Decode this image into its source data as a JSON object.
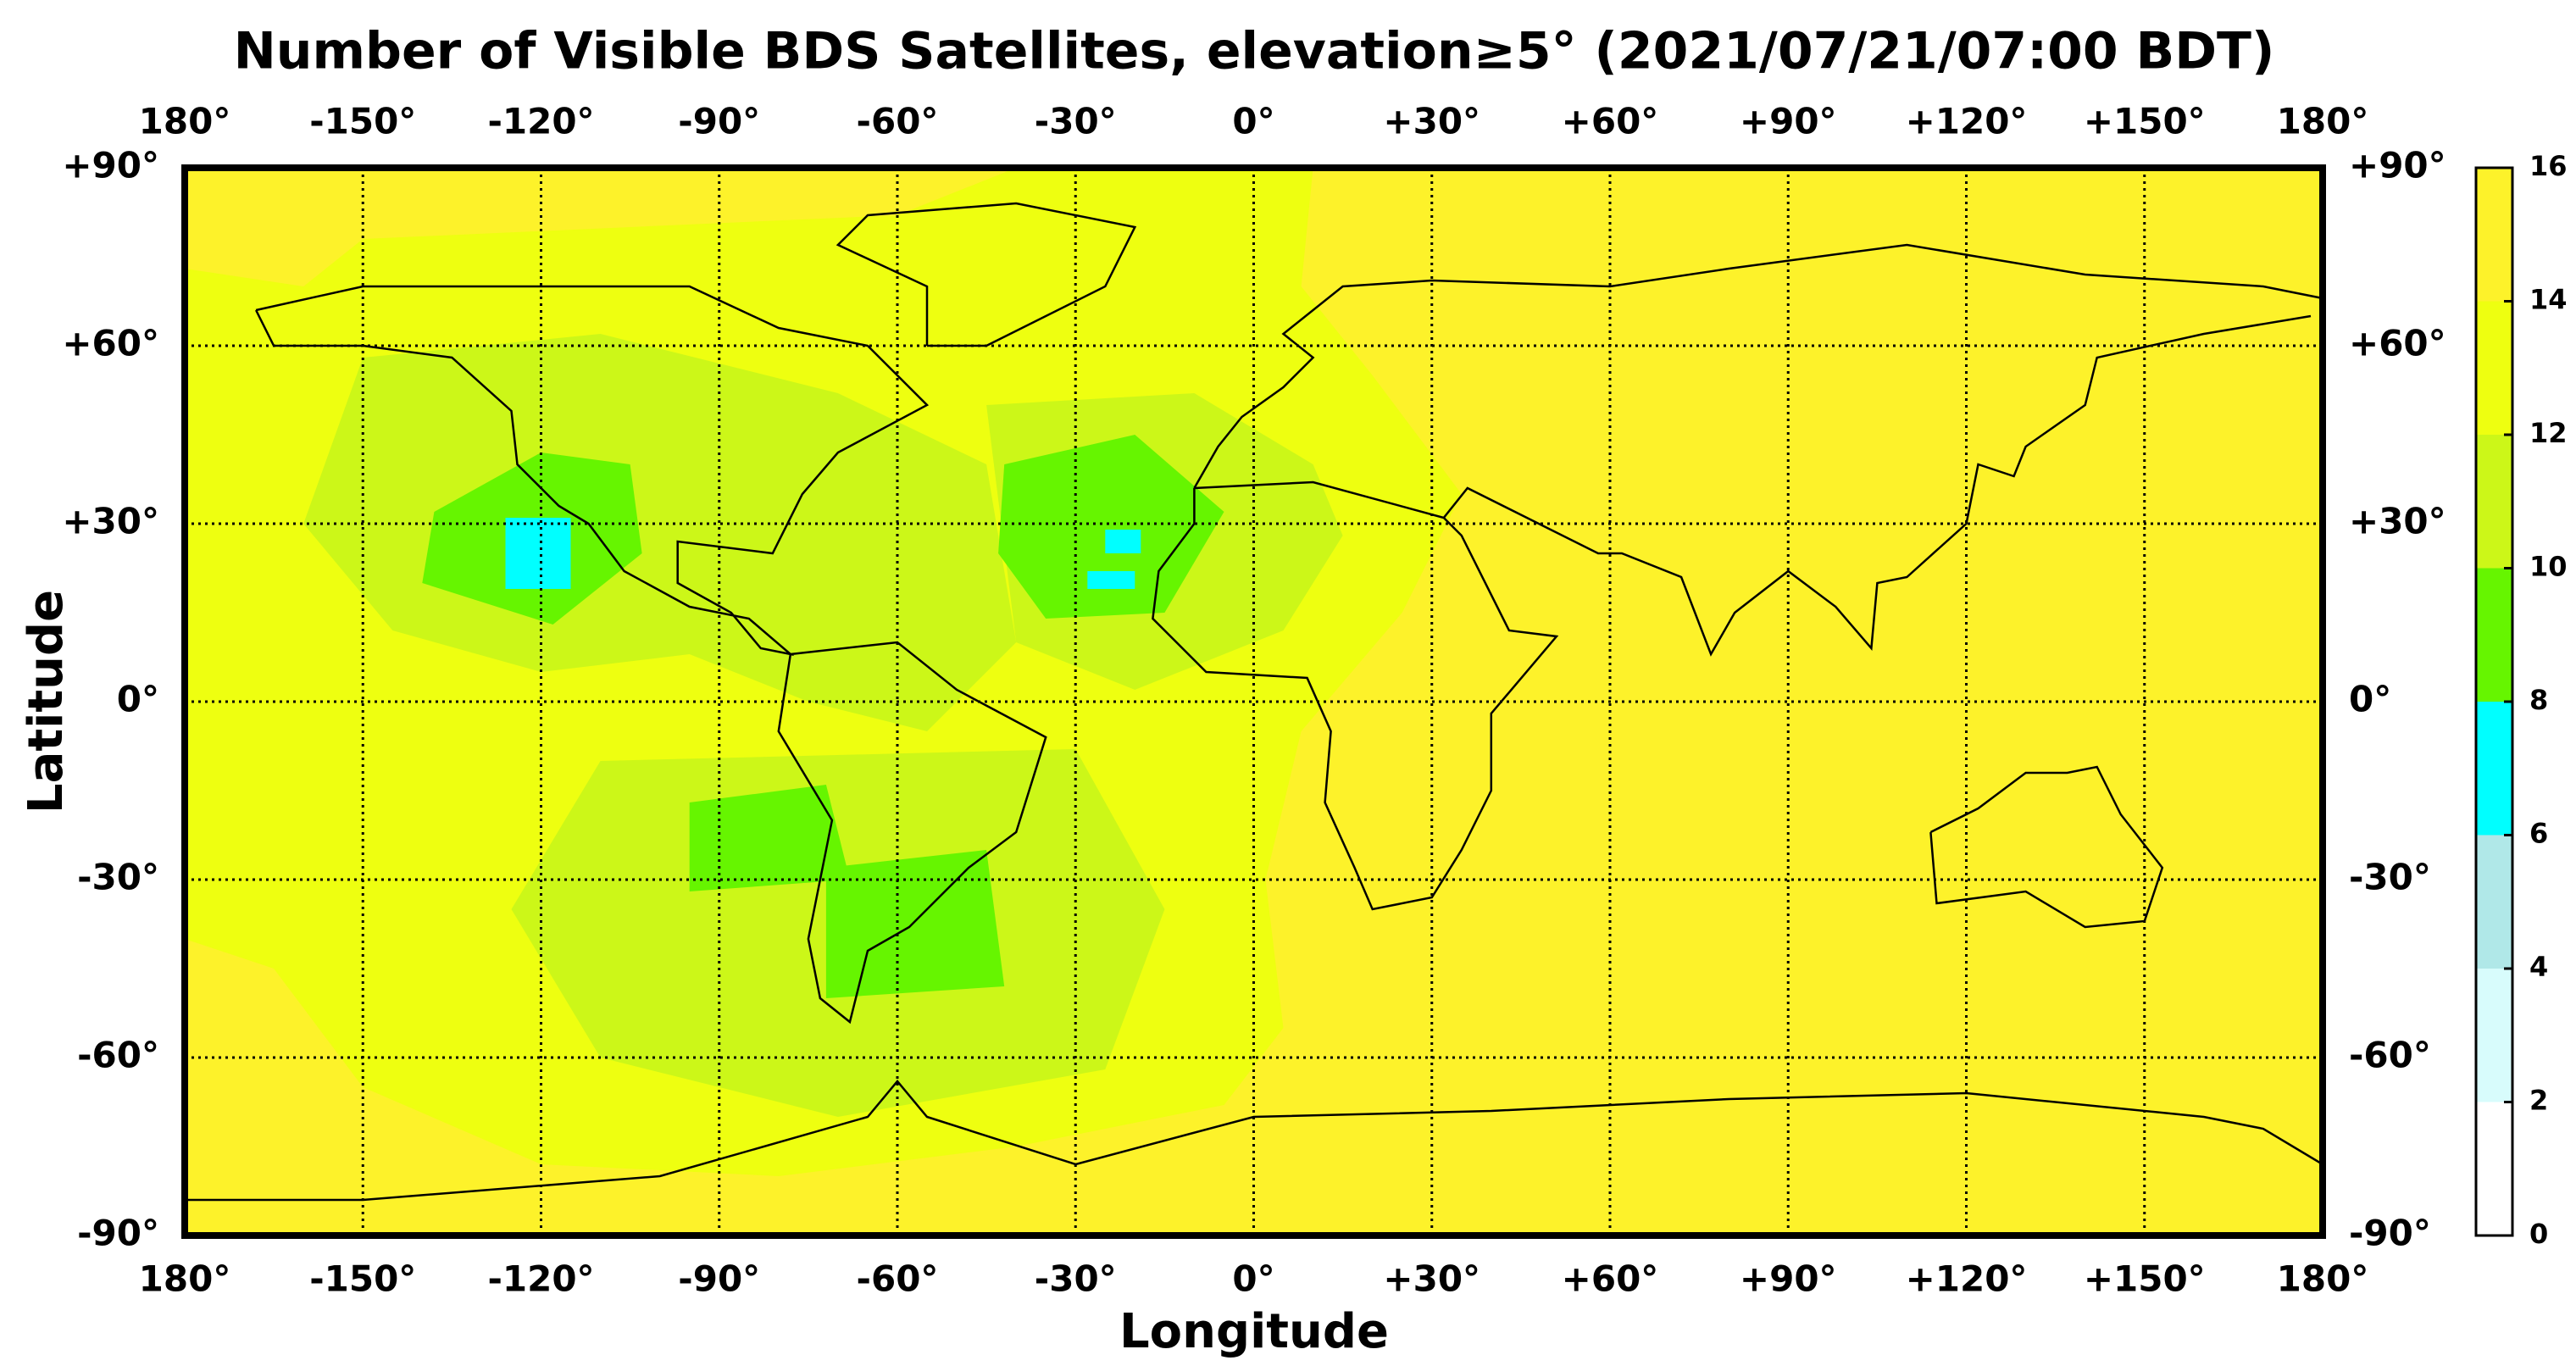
{
  "chart_data": {
    "type": "heatmap-map",
    "title": "Number of Visible BDS Satellites, elevation≥5° (2021/07/21/07:00 BDT)",
    "xlabel": "Longitude",
    "ylabel": "Latitude",
    "xlim": [
      -180,
      180
    ],
    "ylim": [
      -90,
      90
    ],
    "xticks": [
      {
        "value": -180,
        "label": "180°"
      },
      {
        "value": -150,
        "label": "-150°"
      },
      {
        "value": -120,
        "label": "-120°"
      },
      {
        "value": -90,
        "label": "-90°"
      },
      {
        "value": -60,
        "label": "-60°"
      },
      {
        "value": -30,
        "label": "-30°"
      },
      {
        "value": 0,
        "label": "0°"
      },
      {
        "value": 30,
        "label": "+30°"
      },
      {
        "value": 60,
        "label": "+60°"
      },
      {
        "value": 90,
        "label": "+90°"
      },
      {
        "value": 120,
        "label": "+120°"
      },
      {
        "value": 150,
        "label": "+150°"
      },
      {
        "value": 180,
        "label": "180°"
      }
    ],
    "yticks": [
      {
        "value": -90,
        "label": "-90°"
      },
      {
        "value": -60,
        "label": "-60°"
      },
      {
        "value": -30,
        "label": "-30°"
      },
      {
        "value": 0,
        "label": "0°"
      },
      {
        "value": 30,
        "label": "+30°"
      },
      {
        "value": 60,
        "label": "+60°"
      },
      {
        "value": 90,
        "label": "+90°"
      }
    ],
    "grid": true,
    "colorbar": {
      "lim": [
        0,
        16
      ],
      "ticks": [
        0,
        2,
        4,
        6,
        8,
        10,
        12,
        14,
        16
      ],
      "colors": [
        "#ffffff",
        "#d8fcfc",
        "#b0e8e8",
        "#00ffff",
        "#66f500",
        "#ccf718",
        "#eeff10",
        "#fdf22a"
      ]
    }
  }
}
